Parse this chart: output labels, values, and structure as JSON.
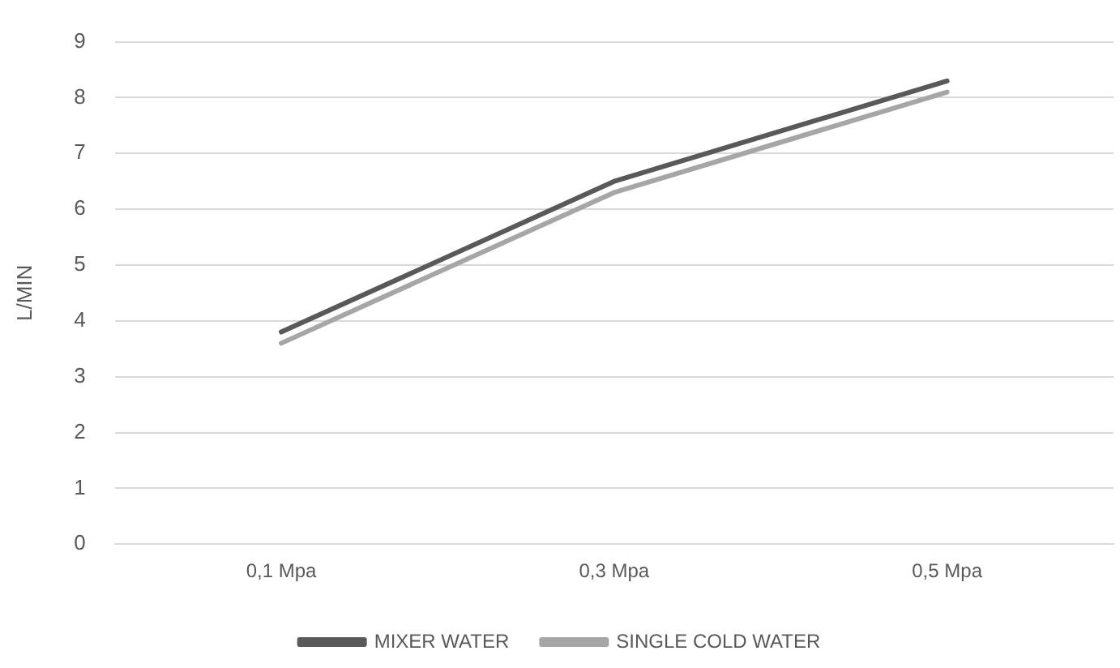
{
  "chart_data": {
    "type": "line",
    "ylabel": "L/MIN",
    "categories": [
      "0,1 Mpa",
      "0,3 Mpa",
      "0,5 Mpa"
    ],
    "series": [
      {
        "name": "MIXER WATER",
        "color": "#595959",
        "values": [
          3.8,
          6.5,
          8.3
        ]
      },
      {
        "name": "SINGLE COLD WATER",
        "color": "#a6a6a6",
        "values": [
          3.6,
          6.3,
          8.1
        ]
      }
    ],
    "ylim": [
      0,
      9
    ],
    "yticks": [
      0,
      1,
      2,
      3,
      4,
      5,
      6,
      7,
      8,
      9
    ],
    "grid": "y",
    "legend": "bottom",
    "marker": "none"
  }
}
